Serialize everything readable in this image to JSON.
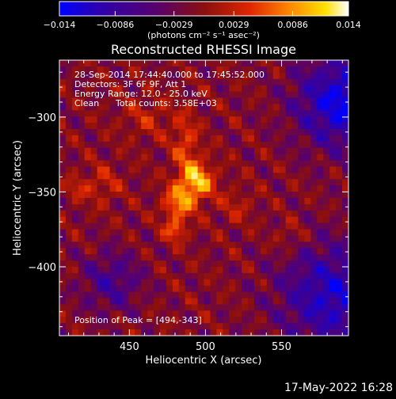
{
  "colorbar": {
    "ticks": [
      -0.014,
      -0.0086,
      -0.0029,
      0.0029,
      0.0086,
      0.014
    ],
    "tick_labels": [
      "−0.014",
      "−0.0086",
      "−0.0029",
      "0.0029",
      "0.0086",
      "0.014"
    ],
    "units_label": "(photons cm⁻² s⁻¹ asec⁻²)",
    "range": [
      -0.014,
      0.014
    ]
  },
  "title": "Reconstructed RHESSI Image",
  "annotations": {
    "time_range": "28-Sep-2014 17:44:40.000 to 17:45:52.000",
    "detectors": "Detectors: 3F 6F 9F, Att 1",
    "energy_range": "Energy Range: 12.0 - 25.0 keV",
    "clean_label": "Clean",
    "total_counts": "Total counts: 3.58E+03",
    "peak_position": "Position of Peak = [494,-343]"
  },
  "axes": {
    "xlabel": "Heliocentric X (arcsec)",
    "ylabel": "Heliocentric Y (arcsec)"
  },
  "footer": {
    "date_time": "17-May-2022 16:28"
  },
  "chart_data": {
    "type": "heatmap",
    "title": "Reconstructed RHESSI Image",
    "xlabel": "Heliocentric X (arcsec)",
    "ylabel": "Heliocentric Y (arcsec)",
    "xlim": [
      404,
      594
    ],
    "ylim": [
      -446,
      -262
    ],
    "x_ticks": [
      450,
      500,
      550
    ],
    "y_ticks": [
      -300,
      -350,
      -400
    ],
    "x_tick_labels": [
      "450",
      "500",
      "550"
    ],
    "y_tick_labels": [
      "−300",
      "−350",
      "−400"
    ],
    "value_range": [
      -0.014,
      0.014
    ],
    "colormap": "blue-purple-red-orange-yellow-white",
    "peak": {
      "x": 494,
      "y": -343,
      "value": 0.014
    },
    "sources": [
      {
        "x": 494,
        "y": -343,
        "sigma_x": 8,
        "sigma_y": 9,
        "amplitude": 0.0115
      },
      {
        "x": 482,
        "y": -358,
        "sigma_x": 7,
        "sigma_y": 8,
        "amplitude": 0.0085
      },
      {
        "x": 487,
        "y": -318,
        "sigma_x": 6,
        "sigma_y": 14,
        "amplitude": 0.0055
      },
      {
        "x": 480,
        "y": -376,
        "sigma_x": 5,
        "sigma_y": 5,
        "amplitude": 0.007
      },
      {
        "x": 432,
        "y": -345,
        "sigma_x": 9,
        "sigma_y": 9,
        "amplitude": 0.0038
      },
      {
        "x": 415,
        "y": -348,
        "sigma_x": 5,
        "sigma_y": 5,
        "amplitude": 0.0035
      },
      {
        "x": 462,
        "y": -300,
        "sigma_x": 12,
        "sigma_y": 10,
        "amplitude": 0.0033
      },
      {
        "x": 520,
        "y": -360,
        "sigma_x": 8,
        "sigma_y": 8,
        "amplitude": 0.003
      },
      {
        "x": 555,
        "y": -380,
        "sigma_x": 7,
        "sigma_y": 7,
        "amplitude": 0.003
      }
    ],
    "background": -0.001,
    "ripple_amplitude": 0.0032,
    "negative_regions": [
      {
        "x": 590,
        "y": -290,
        "radius": 30,
        "value": -0.012
      },
      {
        "x": 584,
        "y": -420,
        "radius": 35,
        "value": -0.01
      },
      {
        "x": 438,
        "y": -410,
        "radius": 20,
        "value": -0.006
      }
    ],
    "grid": false,
    "legend": "none"
  }
}
